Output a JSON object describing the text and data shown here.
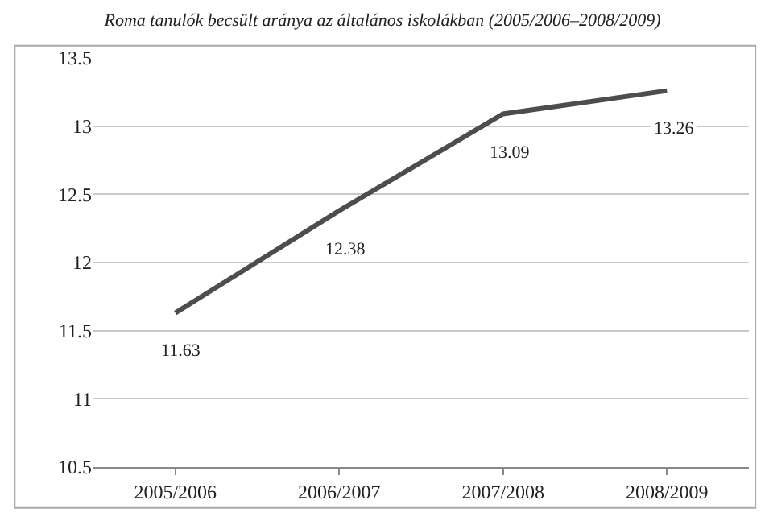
{
  "chart_data": {
    "type": "line",
    "title": "Roma tanulók becsült aránya az általános iskolákban (2005/2006–2008/2009)",
    "categories": [
      "2005/2006",
      "2006/2007",
      "2007/2008",
      "2008/2009"
    ],
    "series": [
      {
        "color": "#4d4d4d",
        "values": [
          11.63,
          12.38,
          13.09,
          13.26
        ]
      }
    ],
    "ylim": [
      10.5,
      13.5
    ],
    "yticks": [
      10.5,
      11,
      11.5,
      12,
      12.5,
      13,
      13.5
    ],
    "grid": "y",
    "data_labels": true,
    "marker": "none",
    "line_style": "solid"
  }
}
